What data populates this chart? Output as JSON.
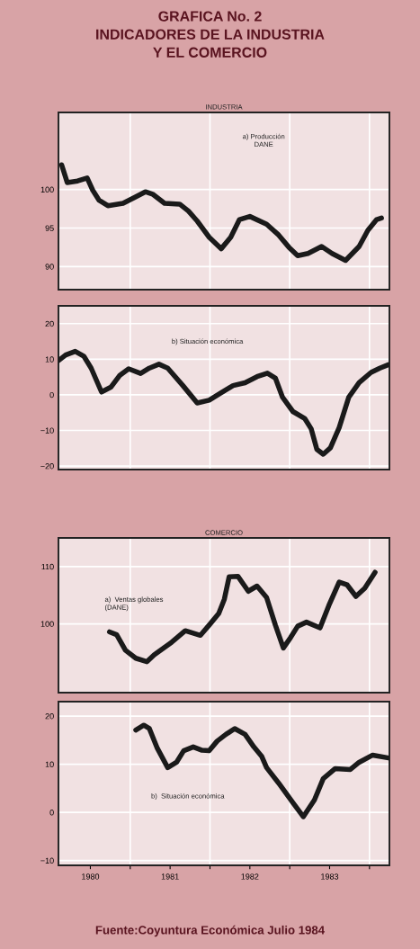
{
  "chart_data": [
    {
      "type": "line",
      "title": "GRAFICA No. 2\nINDICADORES DE LA INDUSTRIA\nY EL COMERCIO",
      "subtitle": "INDUSTRIA",
      "xlim": [
        1980.1,
        1984.25
      ],
      "ylim": [
        87,
        110
      ],
      "yticks": [
        90,
        95,
        100
      ],
      "xticks": [
        {
          "value": 1981,
          "label": null
        },
        {
          "value": 1982,
          "label": null
        },
        {
          "value": 1983,
          "label": null
        },
        {
          "value": 1984,
          "label": null
        }
      ],
      "tick_labels": "y",
      "grid": true,
      "line_style": "solid",
      "series": [
        {
          "name": "a) Producción\nDANE",
          "color": "#1a1a1a",
          "x": [
            1980.14,
            1980.21,
            1980.34,
            1980.46,
            1980.53,
            1980.61,
            1980.72,
            1980.91,
            1981.06,
            1981.19,
            1981.28,
            1981.43,
            1981.62,
            1981.73,
            1981.84,
            1981.99,
            1982.14,
            1982.26,
            1982.37,
            1982.5,
            1982.71,
            1982.86,
            1982.99,
            1983.1,
            1983.23,
            1983.4,
            1983.53,
            1983.7,
            1983.87,
            1983.98,
            1984.09,
            1984.15
          ],
          "values": [
            103.2,
            100.9,
            101.1,
            101.5,
            99.9,
            98.6,
            97.9,
            98.2,
            99.0,
            99.7,
            99.4,
            98.2,
            98.1,
            97.2,
            95.9,
            93.8,
            92.3,
            93.8,
            96.1,
            96.5,
            95.5,
            94.1,
            92.5,
            91.4,
            91.7,
            92.6,
            91.7,
            90.8,
            92.6,
            94.7,
            96.1,
            96.3
          ]
        }
      ]
    },
    {
      "type": "line",
      "xlim": [
        1980.1,
        1984.25
      ],
      "ylim": [
        -21,
        25
      ],
      "yticks": [
        -20,
        -10,
        0,
        10,
        20
      ],
      "xticks": [
        {
          "value": 1981,
          "label": null
        },
        {
          "value": 1982,
          "label": null
        },
        {
          "value": 1983,
          "label": null
        },
        {
          "value": 1984,
          "label": null
        }
      ],
      "tick_labels": "y",
      "grid": true,
      "line_style": "solid",
      "series": [
        {
          "name": "b) Situación económica",
          "color": "#1a1a1a",
          "x": [
            1980.1,
            1980.19,
            1980.31,
            1980.42,
            1980.51,
            1980.64,
            1980.76,
            1980.87,
            1980.98,
            1981.13,
            1981.24,
            1981.36,
            1981.47,
            1981.66,
            1981.84,
            1981.99,
            1982.14,
            1982.29,
            1982.44,
            1982.59,
            1982.72,
            1982.82,
            1982.91,
            1983.04,
            1983.19,
            1983.27,
            1983.34,
            1983.42,
            1983.51,
            1983.62,
            1983.74,
            1983.87,
            1984.02,
            1984.13,
            1984.24
          ],
          "values": [
            9.6,
            11.2,
            12.2,
            10.8,
            7.5,
            0.8,
            2.2,
            5.5,
            7.3,
            6.0,
            7.5,
            8.6,
            7.5,
            2.6,
            -2.3,
            -1.5,
            0.6,
            2.6,
            3.4,
            5.1,
            6.1,
            4.7,
            -0.7,
            -4.7,
            -6.7,
            -9.6,
            -15.3,
            -16.7,
            -14.9,
            -9.2,
            -0.7,
            3.4,
            6.3,
            7.5,
            8.5
          ]
        }
      ]
    },
    {
      "type": "line",
      "subtitle": "COMERCIO",
      "xlim": [
        1980.1,
        1984.25
      ],
      "ylim": [
        88,
        115
      ],
      "yticks": [
        100,
        110
      ],
      "xticks": [
        {
          "value": 1981,
          "label": null
        },
        {
          "value": 1982,
          "label": null
        },
        {
          "value": 1983,
          "label": null
        },
        {
          "value": 1984,
          "label": null
        }
      ],
      "tick_labels": "y",
      "grid": true,
      "line_style": "solid",
      "series": [
        {
          "name": "a)  Ventas globales\n(DANE)",
          "color": "#1a1a1a",
          "x": [
            1980.74,
            1980.83,
            1980.94,
            1981.07,
            1981.21,
            1981.3,
            1981.39,
            1981.52,
            1981.69,
            1981.88,
            1981.99,
            1982.11,
            1982.18,
            1982.24,
            1982.35,
            1982.48,
            1982.59,
            1982.71,
            1982.82,
            1982.92,
            1983.01,
            1983.1,
            1983.21,
            1983.38,
            1983.49,
            1983.62,
            1983.72,
            1983.83,
            1983.94,
            1984.07
          ],
          "values": [
            98.6,
            98.1,
            95.4,
            94.0,
            93.4,
            94.6,
            95.5,
            96.8,
            98.8,
            98.0,
            99.8,
            101.8,
            104.3,
            108.2,
            108.3,
            105.7,
            106.6,
            104.6,
            99.8,
            95.8,
            97.6,
            99.6,
            100.3,
            99.3,
            103.2,
            107.3,
            106.8,
            104.8,
            106.2,
            109.0
          ]
        }
      ]
    },
    {
      "type": "line",
      "xlim": [
        1980.1,
        1984.25
      ],
      "ylim": [
        -11,
        23
      ],
      "yticks": [
        -10,
        0,
        10,
        20
      ],
      "xticks": [
        {
          "value": 1980.5,
          "label": "1980"
        },
        {
          "value": 1981,
          "label": null
        },
        {
          "value": 1981.5,
          "label": "1981"
        },
        {
          "value": 1982,
          "label": null
        },
        {
          "value": 1982.5,
          "label": "1982"
        },
        {
          "value": 1983,
          "label": null
        },
        {
          "value": 1983.5,
          "label": "1983"
        },
        {
          "value": 1984,
          "label": null
        }
      ],
      "grid": true,
      "line_style": "solid",
      "annotations": [
        "Fuente:Coyuntura Económica Julio 1984"
      ],
      "series": [
        {
          "name": "b)  Situación económica",
          "color": "#1a1a1a",
          "x": [
            1981.07,
            1981.17,
            1981.24,
            1981.34,
            1981.47,
            1981.58,
            1981.67,
            1981.79,
            1981.9,
            1981.99,
            1982.09,
            1982.2,
            1982.31,
            1982.44,
            1982.55,
            1982.65,
            1982.71,
            1982.86,
            1983.04,
            1983.17,
            1983.31,
            1983.42,
            1983.57,
            1983.76,
            1983.87,
            1984.04,
            1984.24
          ],
          "values": [
            17.1,
            18.1,
            17.4,
            13.3,
            9.3,
            10.4,
            12.8,
            13.6,
            12.9,
            12.8,
            14.8,
            16.2,
            17.4,
            16.2,
            13.6,
            11.6,
            9.3,
            6.1,
            2.0,
            -0.9,
            2.6,
            7.0,
            9.1,
            8.9,
            10.4,
            11.9,
            11.3
          ]
        }
      ]
    }
  ]
}
